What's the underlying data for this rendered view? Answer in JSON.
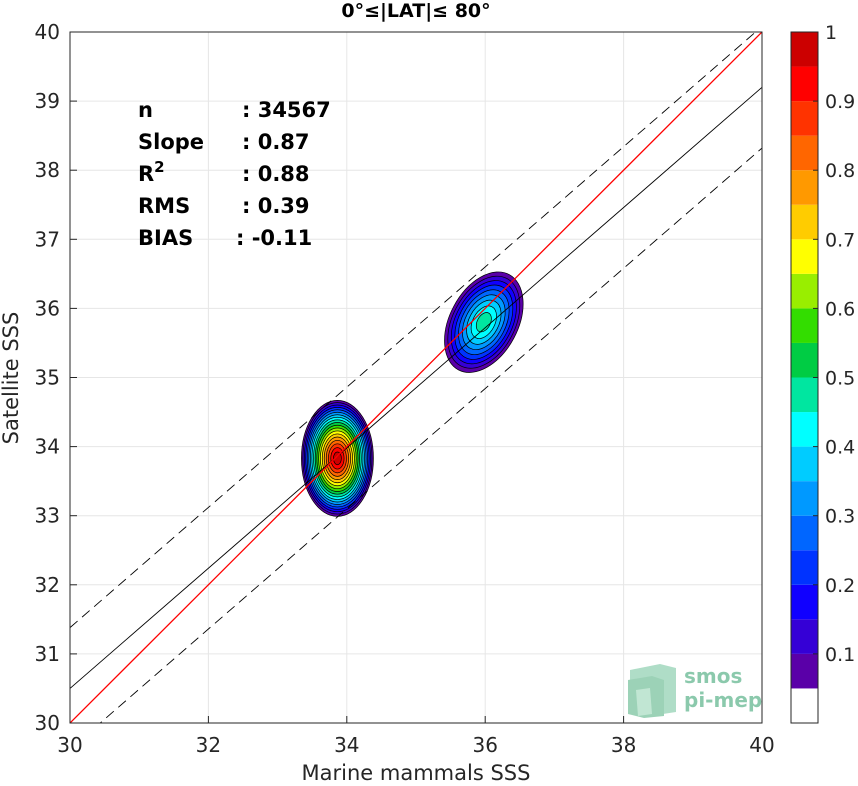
{
  "chart_data": {
    "type": "scatter",
    "subtype": "density-contour",
    "title": "0°≤|LAT|≤ 80°",
    "xlabel": "Marine mammals SSS",
    "ylabel": "Satellite SSS",
    "xlim": [
      30,
      40
    ],
    "ylim": [
      30,
      40
    ],
    "xticks": [
      "30",
      "32",
      "34",
      "36",
      "38",
      "40"
    ],
    "yticks": [
      "30",
      "31",
      "32",
      "33",
      "34",
      "35",
      "36",
      "37",
      "38",
      "39",
      "40"
    ],
    "grid": true,
    "stats": [
      {
        "label": "n",
        "value": ": 34567"
      },
      {
        "label": "Slope",
        "value": ": 0.87"
      },
      {
        "label": "R",
        "sup": "2",
        "value": ": 0.88"
      },
      {
        "label": "RMS",
        "value": ": 0.39"
      },
      {
        "label": "BIAS",
        "value": ": -0.11"
      }
    ],
    "lines": {
      "identity": {
        "x": [
          30,
          40
        ],
        "y": [
          30,
          40
        ],
        "color": "#ff0000"
      },
      "fit": {
        "x": [
          30,
          40
        ],
        "y": [
          30.5,
          39.2
        ],
        "color": "#000000"
      },
      "fit_upper": {
        "x": [
          30,
          40
        ],
        "y": [
          31.38,
          40.08
        ],
        "color": "#000000",
        "dash": true
      },
      "fit_lower": {
        "x": [
          30,
          40
        ],
        "y": [
          29.62,
          38.32
        ],
        "color": "#000000",
        "dash": true
      }
    },
    "clusters": [
      {
        "center": [
          33.85,
          33.83
        ],
        "max_level": 1.0
      },
      {
        "center": [
          35.98,
          35.8
        ],
        "max_level": 0.5
      }
    ],
    "colorbar": {
      "ticks": [
        "0.1",
        "0.2",
        "0.3",
        "0.4",
        "0.5",
        "0.6",
        "0.7",
        "0.8",
        "0.9",
        "1"
      ],
      "range": [
        0,
        1
      ],
      "levels": [
        0,
        0.05,
        0.1,
        0.15,
        0.2,
        0.25,
        0.3,
        0.35,
        0.4,
        0.45,
        0.5,
        0.55,
        0.6,
        0.65,
        0.7,
        0.75,
        0.8,
        0.85,
        0.9,
        0.95,
        1
      ],
      "colors": [
        "#ffffff",
        "#5a00a8",
        "#3500d6",
        "#1000ff",
        "#0033ff",
        "#0066ff",
        "#0099ff",
        "#00ccff",
        "#00ffff",
        "#00e6a0",
        "#00cc44",
        "#33dd00",
        "#99ee00",
        "#ffff00",
        "#ffcc00",
        "#ff9900",
        "#ff6600",
        "#ff3300",
        "#ff0000",
        "#cc0000",
        "#880000"
      ]
    },
    "watermark": [
      "smos",
      "pi-mep"
    ]
  }
}
